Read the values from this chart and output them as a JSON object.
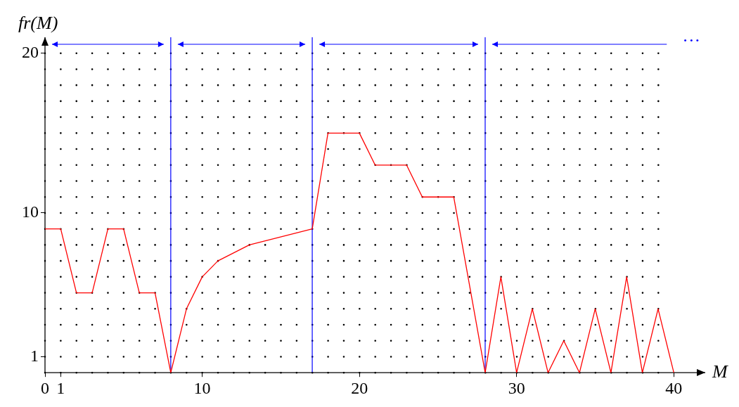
{
  "chart_data": {
    "type": "line",
    "xlabel": "M",
    "ylabel": "fr(M)",
    "series": [
      {
        "color": "#ff0000",
        "x": [
          0,
          1,
          2,
          3,
          4,
          5,
          6,
          7,
          8,
          9,
          10,
          11,
          13,
          17,
          18,
          19,
          20,
          21,
          22,
          23,
          24,
          25,
          26,
          28,
          29,
          30,
          31,
          32,
          33,
          34,
          35,
          36,
          37,
          38,
          39,
          40
        ],
        "values": [
          9,
          9,
          5,
          5,
          9,
          9,
          5,
          5,
          0,
          4,
          6,
          7,
          8,
          9,
          15,
          15,
          15,
          13,
          13,
          13,
          11,
          11,
          11,
          0,
          6,
          0,
          4,
          0,
          2,
          0,
          4,
          0,
          6,
          0,
          4,
          0
        ]
      }
    ],
    "xlim": [
      0,
      42
    ],
    "ylim": [
      0,
      21
    ],
    "xticks": [
      0,
      1,
      10,
      20,
      30,
      40
    ],
    "yticks": [
      1,
      10,
      20
    ],
    "grid": true,
    "marker": "none",
    "line_style": "solid",
    "ref_lines": [
      {
        "axis": "x",
        "value": 8,
        "color": "#0000ff"
      },
      {
        "axis": "x",
        "value": 17,
        "color": "#0000ff"
      },
      {
        "axis": "x",
        "value": 28,
        "color": "#0000ff"
      }
    ],
    "annotations": [
      "···"
    ]
  }
}
